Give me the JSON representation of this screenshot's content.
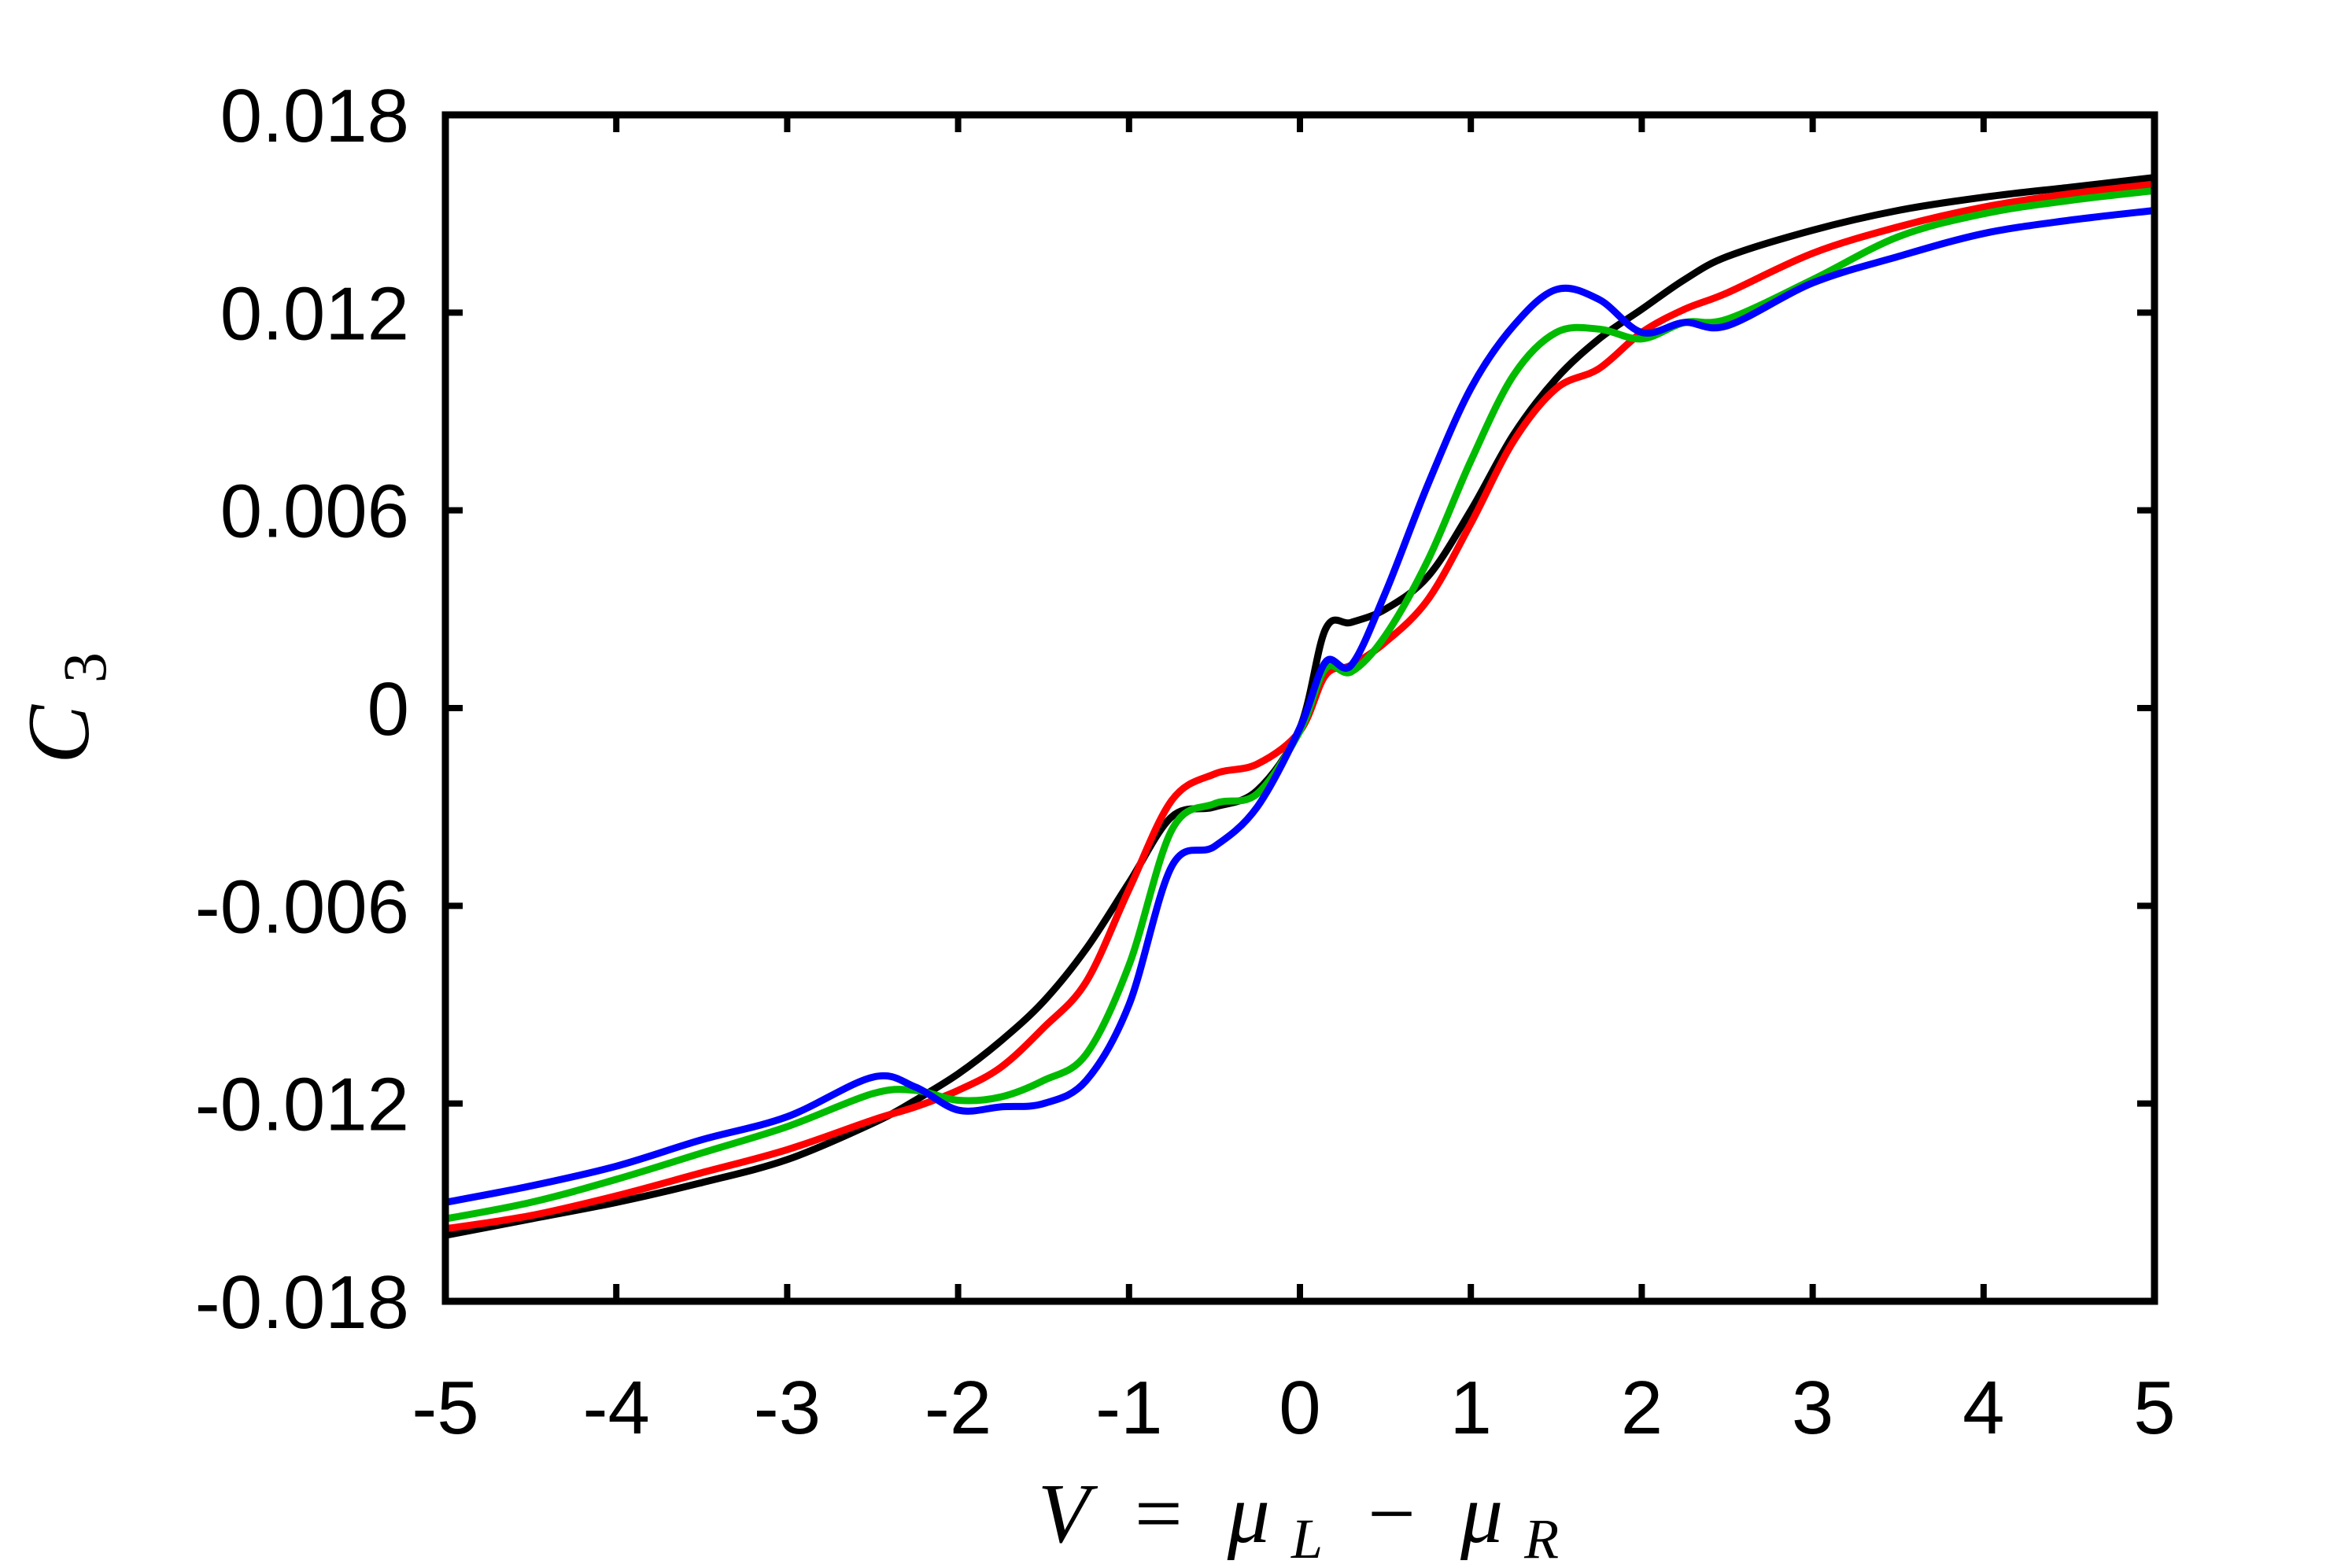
{
  "chart_data": {
    "type": "line",
    "title": "",
    "xlabel": "V = μ_L − μ_R",
    "xlabel_parts": {
      "V": "V",
      "eq": "=",
      "mu": "μ",
      "L": "L",
      "minus": "−",
      "R": "R"
    },
    "ylabel": "C_3",
    "ylabel_parts": {
      "C": "C",
      "sub": "3"
    },
    "xlim": [
      -5,
      5
    ],
    "ylim": [
      -0.018,
      0.018
    ],
    "xticks": [
      -5,
      -4,
      -3,
      -2,
      -1,
      0,
      1,
      2,
      3,
      4,
      5
    ],
    "xtick_labels": [
      "-5",
      "-4",
      "-3",
      "-2",
      "-1",
      "0",
      "1",
      "2",
      "3",
      "4",
      "5"
    ],
    "yticks": [
      -0.018,
      -0.012,
      -0.006,
      0,
      0.006,
      0.012,
      0.018
    ],
    "ytick_labels": [
      "-0.018",
      "-0.012",
      "-0.006",
      "0",
      "0.006",
      "0.012",
      "0.018"
    ],
    "grid": false,
    "legend": "none",
    "x": [
      -5,
      -4.5,
      -4,
      -3.5,
      -3,
      -2.5,
      -2.25,
      -2,
      -1.75,
      -1.5,
      -1.25,
      -1,
      -0.75,
      -0.5,
      -0.25,
      0,
      0.15,
      0.3,
      0.5,
      0.75,
      1,
      1.25,
      1.5,
      1.75,
      2,
      2.25,
      2.5,
      3,
      3.5,
      4,
      4.5,
      5
    ],
    "series": [
      {
        "color": "#000000",
        "values": [
          -0.016,
          -0.0155,
          -0.015,
          -0.0144,
          -0.0137,
          -0.0126,
          -0.0119,
          -0.0111,
          -0.0101,
          -0.0089,
          -0.0073,
          -0.0053,
          -0.0033,
          -0.003,
          -0.0025,
          -0.0006,
          0.0024,
          0.0026,
          0.003,
          0.004,
          0.006,
          0.0083,
          0.01,
          0.0112,
          0.0121,
          0.013,
          0.0137,
          0.0145,
          0.0151,
          0.0155,
          0.0158,
          0.0161
        ]
      },
      {
        "color": "#ff0000",
        "values": [
          -0.0158,
          -0.0154,
          -0.0148,
          -0.0141,
          -0.0134,
          -0.0125,
          -0.0121,
          -0.0116,
          -0.0109,
          -0.0097,
          -0.0083,
          -0.0055,
          -0.0028,
          -0.002,
          -0.0017,
          -0.0007,
          0.001,
          0.0013,
          0.002,
          0.0033,
          0.0056,
          0.0081,
          0.0097,
          0.0103,
          0.0114,
          0.0121,
          0.0126,
          0.0138,
          0.0146,
          0.0152,
          0.0156,
          0.0159
        ]
      },
      {
        "color": "#00bb00",
        "values": [
          -0.0155,
          -0.015,
          -0.0143,
          -0.0135,
          -0.0127,
          -0.0117,
          -0.0116,
          -0.0119,
          -0.0118,
          -0.0113,
          -0.0105,
          -0.0078,
          -0.0037,
          -0.0029,
          -0.0026,
          -0.0007,
          0.0012,
          0.0011,
          0.0022,
          0.0045,
          0.0075,
          0.0101,
          0.0114,
          0.0115,
          0.0112,
          0.0117,
          0.0118,
          0.013,
          0.0143,
          0.015,
          0.0154,
          0.0157
        ]
      },
      {
        "color": "#0000ff",
        "values": [
          -0.015,
          -0.0145,
          -0.0139,
          -0.0131,
          -0.0124,
          -0.0112,
          -0.0115,
          -0.0122,
          -0.0121,
          -0.012,
          -0.0113,
          -0.009,
          -0.0048,
          -0.0042,
          -0.003,
          -0.0006,
          0.0014,
          0.0013,
          0.0035,
          0.0068,
          0.0097,
          0.0116,
          0.0127,
          0.0124,
          0.0114,
          0.0117,
          0.0116,
          0.0129,
          0.0137,
          0.0144,
          0.0148,
          0.0151
        ]
      }
    ]
  }
}
